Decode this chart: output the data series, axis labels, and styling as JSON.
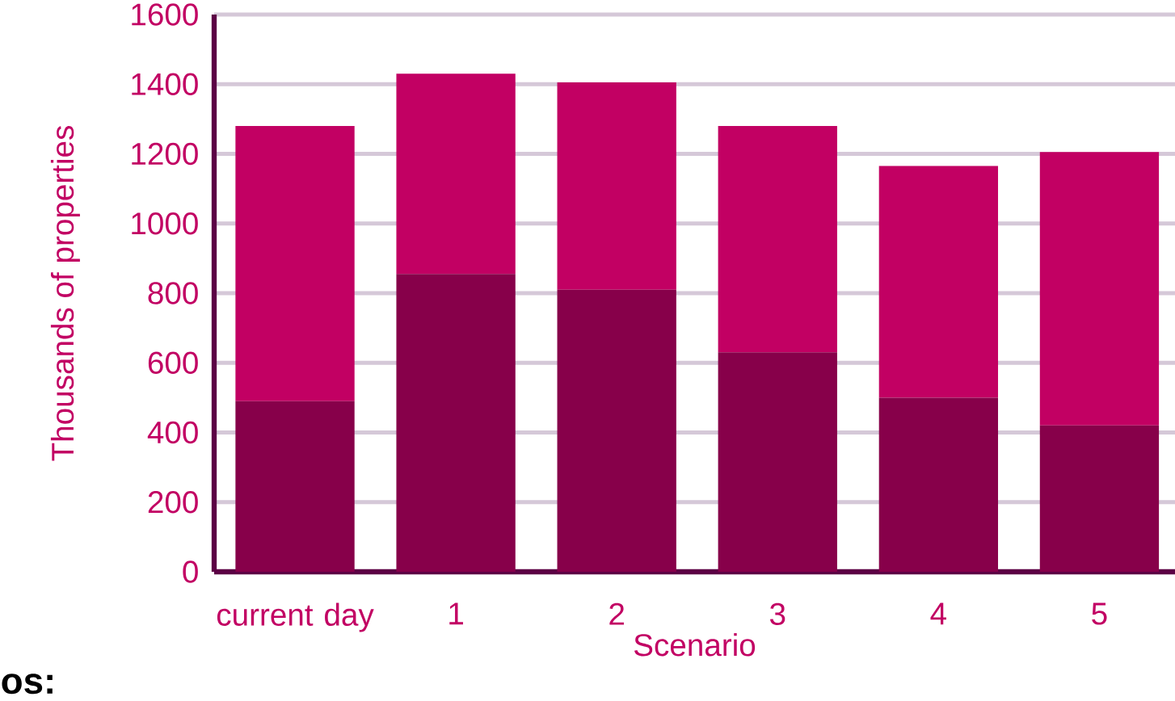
{
  "chart_data": {
    "type": "bar",
    "stacked": true,
    "ylabel": "Thousands of properties",
    "xlabel": "Scenario",
    "categories": [
      "current day",
      "1",
      "2",
      "3",
      "4",
      "5"
    ],
    "series": [
      {
        "color": "#87004a",
        "values": [
          490,
          855,
          810,
          630,
          500,
          420
        ]
      },
      {
        "color": "#c20063",
        "values": [
          790,
          575,
          595,
          650,
          665,
          785
        ]
      }
    ],
    "ylim": [
      0,
      1600
    ],
    "yticks": [
      0,
      200,
      400,
      600,
      800,
      1000,
      1200,
      1400,
      1600
    ],
    "grid": "y",
    "annotations": [
      "os:"
    ]
  }
}
